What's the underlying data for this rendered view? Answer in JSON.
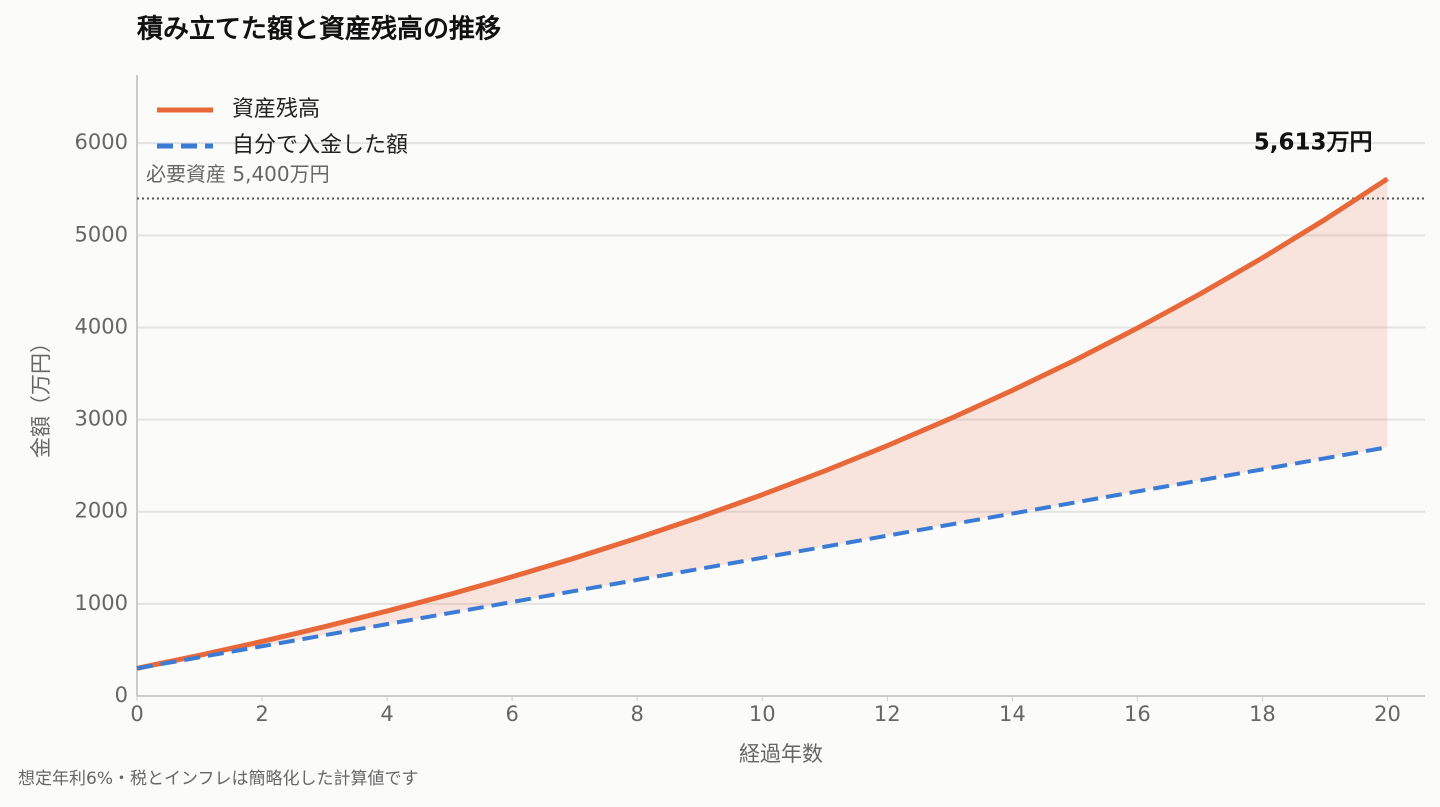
{
  "chart_data": {
    "type": "line",
    "title": "積み立てた額と資産残高の推移",
    "x_label": "経過年数",
    "y_label": "金額（万円）",
    "note": "想定年利6%・税とインフレは簡略化した計算値です",
    "x": [
      0,
      1,
      2,
      3,
      4,
      5,
      6,
      7,
      8,
      9,
      10,
      11,
      12,
      13,
      14,
      15,
      16,
      17,
      18,
      19,
      20
    ],
    "series": [
      {
        "name": "資産残高",
        "color": "#e8683a",
        "dash": false,
        "values": [
          300,
          442,
          592,
          752,
          922,
          1102,
          1294,
          1497,
          1713,
          1942,
          2185,
          2443,
          2717,
          3008,
          3317,
          3644,
          3993,
          4362,
          4755,
          5171,
          5613
        ],
        "value_labels": [
          null,
          null,
          null,
          null,
          null,
          null,
          null,
          null,
          null,
          null,
          null,
          null,
          null,
          null,
          null,
          null,
          null,
          null,
          null,
          null,
          "5,613万円"
        ]
      },
      {
        "name": "自分で入金した額",
        "color": "#3a7bd5",
        "dash": true,
        "values": [
          300,
          420,
          540,
          660,
          780,
          900,
          1020,
          1140,
          1260,
          1380,
          1500,
          1620,
          1740,
          1860,
          1980,
          2100,
          2220,
          2340,
          2460,
          2580,
          2700
        ]
      }
    ],
    "fill_between": true,
    "reference_line": {
      "value": 5400,
      "label": "必要資産 5,400万円"
    },
    "xlim": [
      0,
      20.6
    ],
    "ylim": [
      0,
      6740
    ],
    "xticks": [
      0,
      2,
      4,
      6,
      8,
      10,
      12,
      14,
      16,
      18,
      20
    ],
    "yticks": [
      0,
      1000,
      2000,
      3000,
      4000,
      5000,
      6000
    ],
    "grid": true,
    "legend": "upper left"
  }
}
